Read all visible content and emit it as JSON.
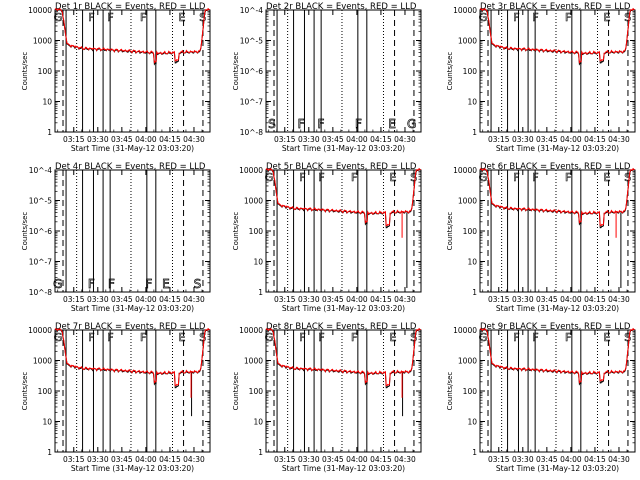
{
  "colors": {
    "events": "#000000",
    "lld": "#ff0000",
    "background": "#ffffff"
  },
  "common": {
    "x_labels": [
      "03:15",
      "03:30",
      "03:45",
      "04:00",
      "04:15",
      "04:30"
    ],
    "x_minutes": [
      15,
      30,
      45,
      60,
      75,
      90
    ],
    "x_range_minutes": [
      3.3,
      100
    ],
    "xlabel": "Start Time (31-May-12 03:03:20)",
    "ylabel": "Counts/sec",
    "linear_y_ticks": [
      "1",
      "10",
      "100",
      "1000",
      "10000"
    ],
    "log_y_ticks": [
      "10^-8",
      "10^-7",
      "10^-6",
      "10^-5",
      "10^-4"
    ],
    "solid_event_lines": [
      10.2,
      20.5,
      27.3,
      33.3,
      37.7,
      60.6,
      66.2
    ],
    "dotted_event_lines": [
      16.8,
      50.7,
      76.6
    ],
    "dashed_event_lines": [
      8.3,
      83.5,
      95.6
    ],
    "flag_letters_top": [
      "G",
      "F",
      "F",
      "F",
      "E",
      "S"
    ],
    "flag_letters_top_minutes": [
      5.2,
      26.0,
      37.9,
      58.3,
      82.5,
      95.5
    ]
  },
  "chart_data": [
    {
      "type": "line",
      "title": "Det 1r BLACK = Events, RED = LLD",
      "mode": "counts",
      "dip_extent": 0
    },
    {
      "type": "line",
      "title": "Det 2r BLACK = Events, RED = LLD",
      "mode": "empty",
      "flag_letters": [
        "S",
        "F",
        "F",
        "F",
        "E",
        "G"
      ],
      "flag_minutes": [
        7.0,
        25.2,
        37.6,
        61.0,
        82.0,
        94.2
      ]
    },
    {
      "type": "line",
      "title": "Det 3r BLACK = Events, RED = LLD",
      "mode": "counts",
      "dip_extent": 0
    },
    {
      "type": "line",
      "title": "Det 4r BLACK = Events, RED = LLD",
      "mode": "empty",
      "flag_letters": [
        "G",
        "F",
        "F",
        "F",
        "E",
        "S"
      ],
      "flag_minutes": [
        5.0,
        26.0,
        38.5,
        61.8,
        72.5,
        92.2
      ]
    },
    {
      "type": "line",
      "title": "Det 5r BLACK = Events, RED = LLD",
      "mode": "counts",
      "dip_extent": 2
    },
    {
      "type": "line",
      "title": "Det 6r BLACK = Events, RED = LLD",
      "mode": "counts",
      "dip_extent": 2
    },
    {
      "type": "line",
      "title": "Det 7r BLACK = Events, RED = LLD",
      "mode": "counts",
      "dip_extent": 1
    },
    {
      "type": "line",
      "title": "Det 8r BLACK = Events, RED = LLD",
      "mode": "counts",
      "dip_extent": 1
    },
    {
      "type": "line",
      "title": "Det 9r BLACK = Events, RED = LLD",
      "mode": "counts",
      "dip_extent": 0
    }
  ]
}
